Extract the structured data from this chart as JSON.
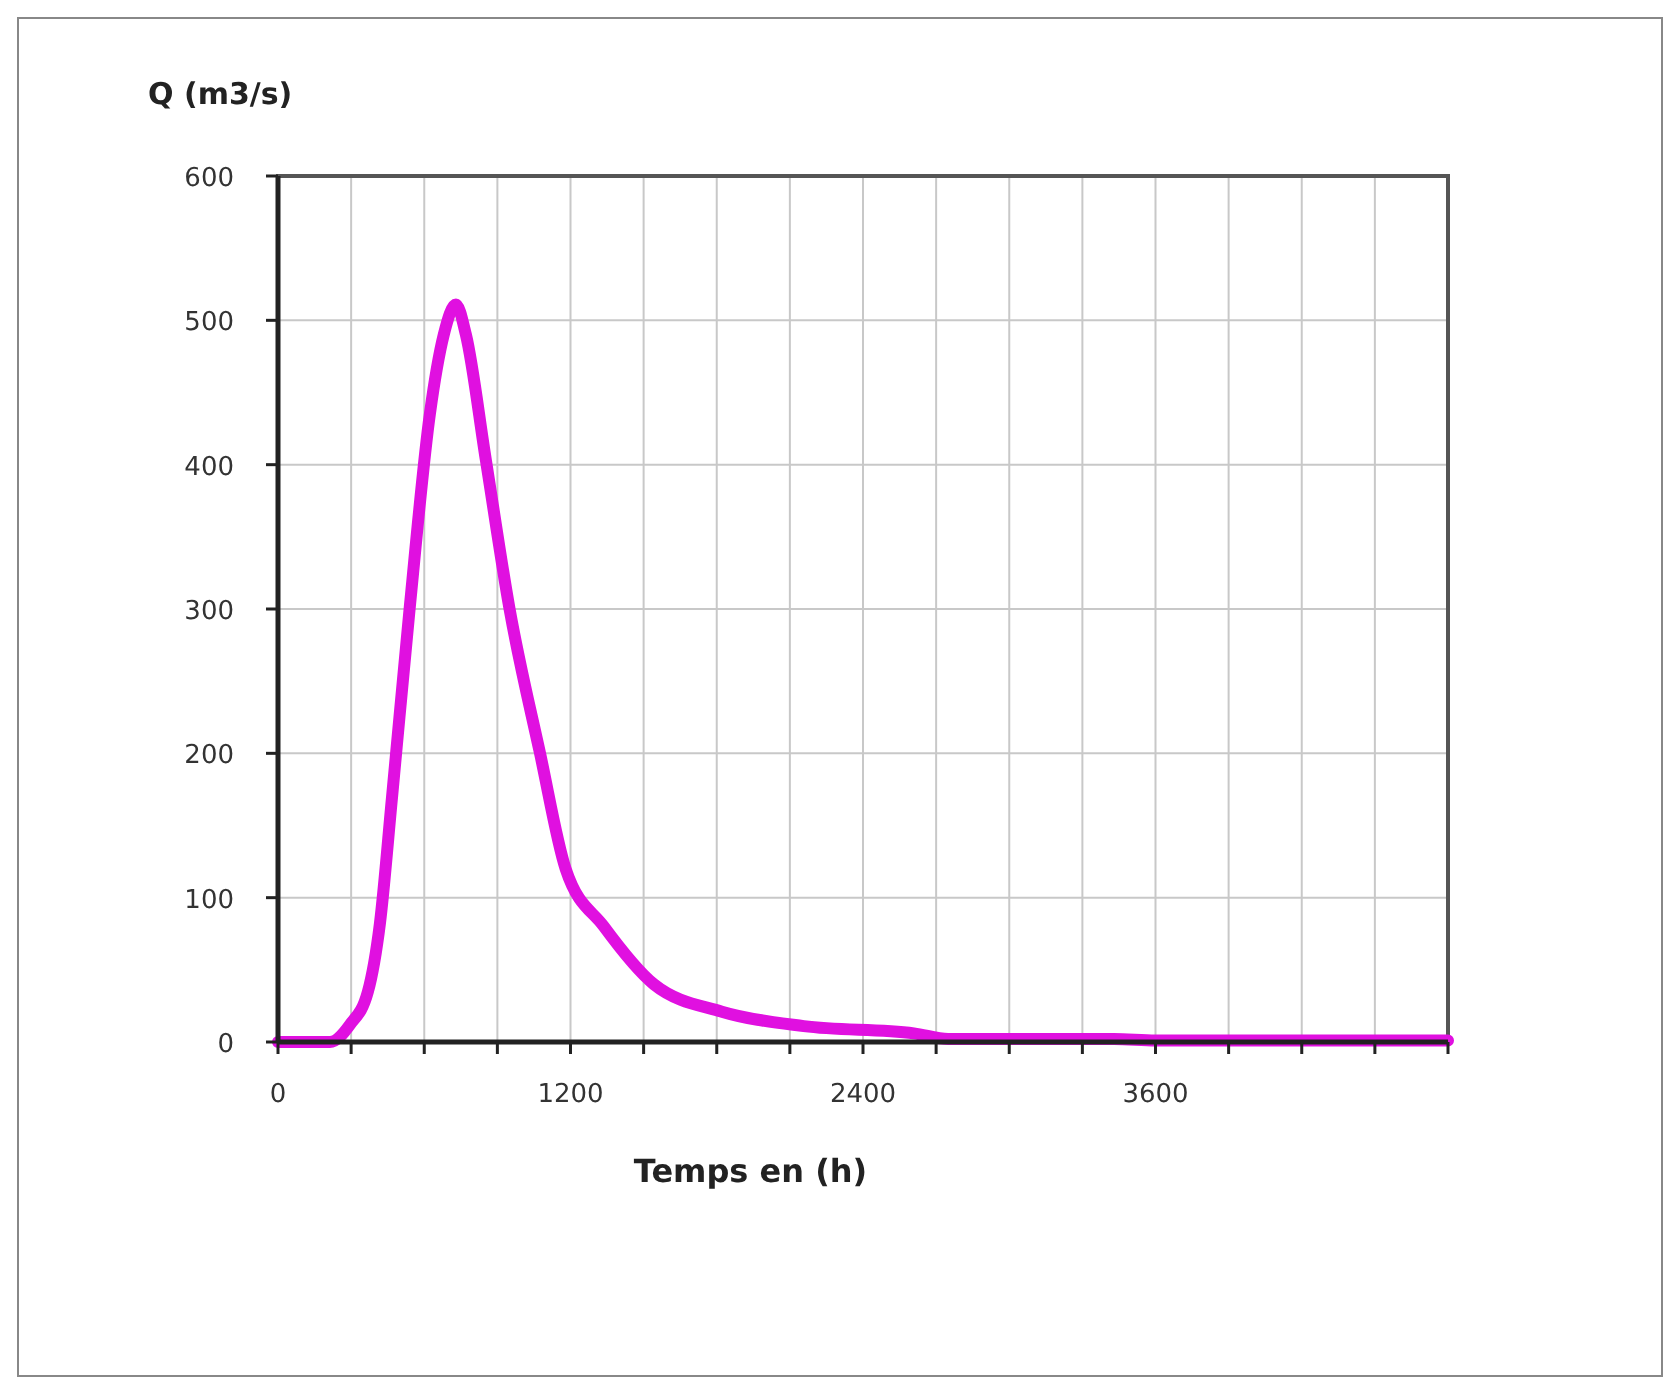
{
  "chart_data": {
    "type": "line",
    "ylabel": "Q (m3/s)",
    "xlabel": "Temps en (h)",
    "xlim": [
      0,
      4800
    ],
    "xticks": [
      0,
      {
        "value": 300,
        "label": null
      },
      {
        "value": 600,
        "label": null
      },
      {
        "value": 900,
        "label": null
      },
      1200,
      {
        "value": 1500,
        "label": null
      },
      {
        "value": 1800,
        "label": null
      },
      {
        "value": 2100,
        "label": null
      },
      2400,
      {
        "value": 2700,
        "label": null
      },
      {
        "value": 3000,
        "label": null
      },
      {
        "value": 3300,
        "label": null
      },
      3600,
      {
        "value": 3900,
        "label": null
      },
      {
        "value": 4200,
        "label": null
      },
      {
        "value": 4500,
        "label": null
      },
      {
        "value": 4800,
        "label": null
      }
    ],
    "ylim": [
      0,
      600
    ],
    "yticks": [
      0,
      100,
      200,
      300,
      400,
      500,
      600
    ],
    "grid": true,
    "series": [
      {
        "color": "#e010e0",
        "x": [
          0,
          100,
          213,
          295,
          369,
          418,
          468,
          541,
          623,
          680,
          730,
          771,
          853,
          950,
          1075,
          1180,
          1337,
          1542,
          1821,
          2157,
          2609,
          2750,
          3430,
          3600,
          4000,
          4800
        ],
        "values": [
          0,
          0,
          0,
          12,
          35,
          82,
          170,
          302,
          435,
          490,
          511,
          490,
          403,
          300,
          200,
          120,
          80,
          40,
          21,
          11,
          6,
          2,
          2,
          1,
          1,
          1
        ]
      }
    ]
  }
}
